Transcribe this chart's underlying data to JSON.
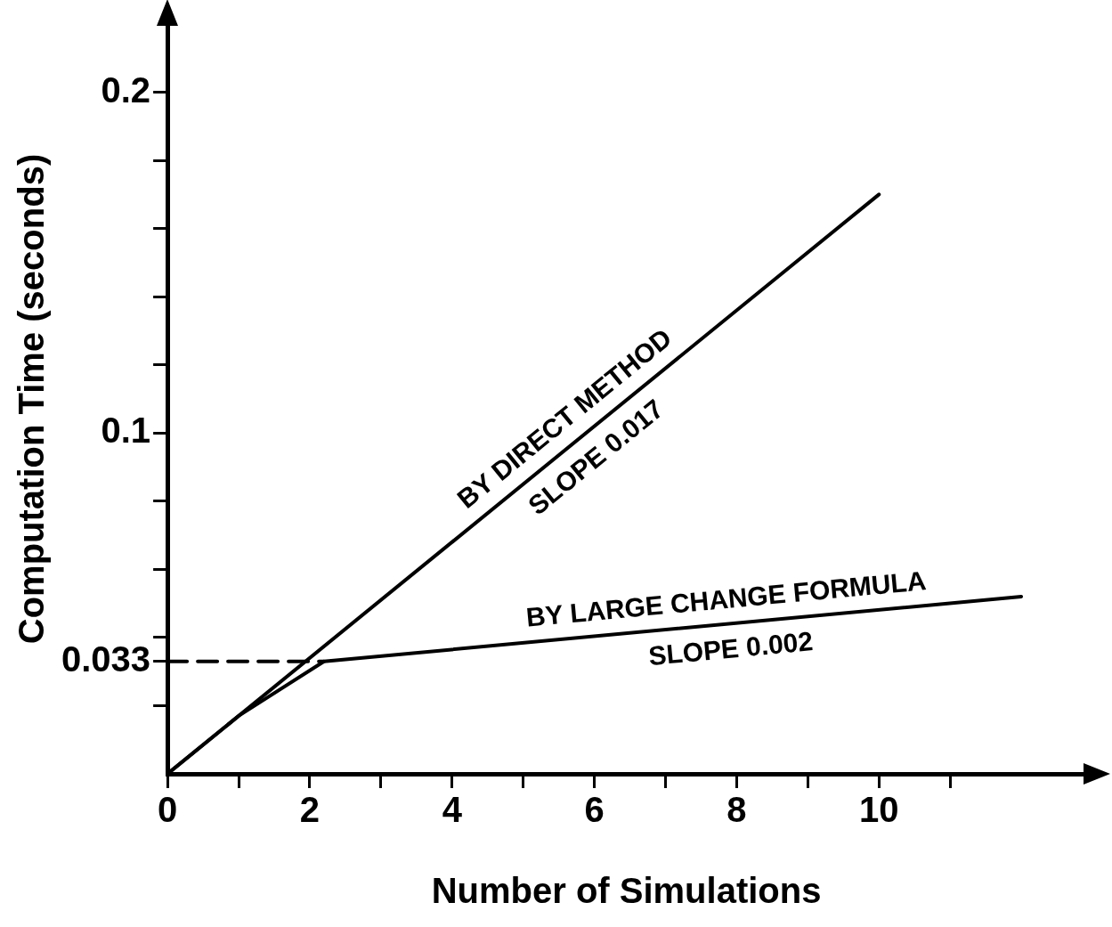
{
  "chart_data": {
    "type": "line",
    "xlabel": "Number of Simulations",
    "ylabel": "Computation Time (seconds)",
    "xlim": [
      0,
      12.9
    ],
    "ylim": [
      0,
      0.22
    ],
    "xticks": [
      0,
      {
        "value": 1,
        "label": null
      },
      2,
      {
        "value": 3,
        "label": null
      },
      4,
      {
        "value": 5,
        "label": null
      },
      6,
      {
        "value": 7,
        "label": null
      },
      8,
      {
        "value": 9,
        "label": null
      },
      10,
      {
        "value": 11,
        "label": null
      }
    ],
    "yticks": [
      {
        "value": 0.02,
        "label": null
      },
      {
        "value": 0.033,
        "label": "0.033"
      },
      {
        "value": 0.04,
        "label": null
      },
      {
        "value": 0.06,
        "label": null
      },
      {
        "value": 0.08,
        "label": null
      },
      {
        "value": 0.1,
        "label": "0.1"
      },
      {
        "value": 0.12,
        "label": null
      },
      {
        "value": 0.14,
        "label": null
      },
      {
        "value": 0.16,
        "label": null
      },
      {
        "value": 0.18,
        "label": null
      },
      {
        "value": 0.2,
        "label": "0.2"
      }
    ],
    "series": [
      {
        "color": "#000000",
        "x": [
          0,
          10
        ],
        "values": [
          0,
          0.17
        ]
      },
      {
        "color": "#000000",
        "x": [
          0,
          1,
          2.2,
          12
        ],
        "values": [
          0,
          0.017,
          0.033,
          0.052
        ]
      },
      {
        "color": "#000000",
        "x": [
          0,
          2.2
        ],
        "values": [
          0.033,
          0.033
        ],
        "line_style": "dashed"
      }
    ],
    "annotations": [
      "BY DIRECT METHOD",
      "SLOPE 0.017",
      "BY LARGE CHANGE FORMULA",
      "SLOPE 0.002"
    ],
    "grid": false,
    "legend": false,
    "marker": "none",
    "line_style": "solid"
  }
}
